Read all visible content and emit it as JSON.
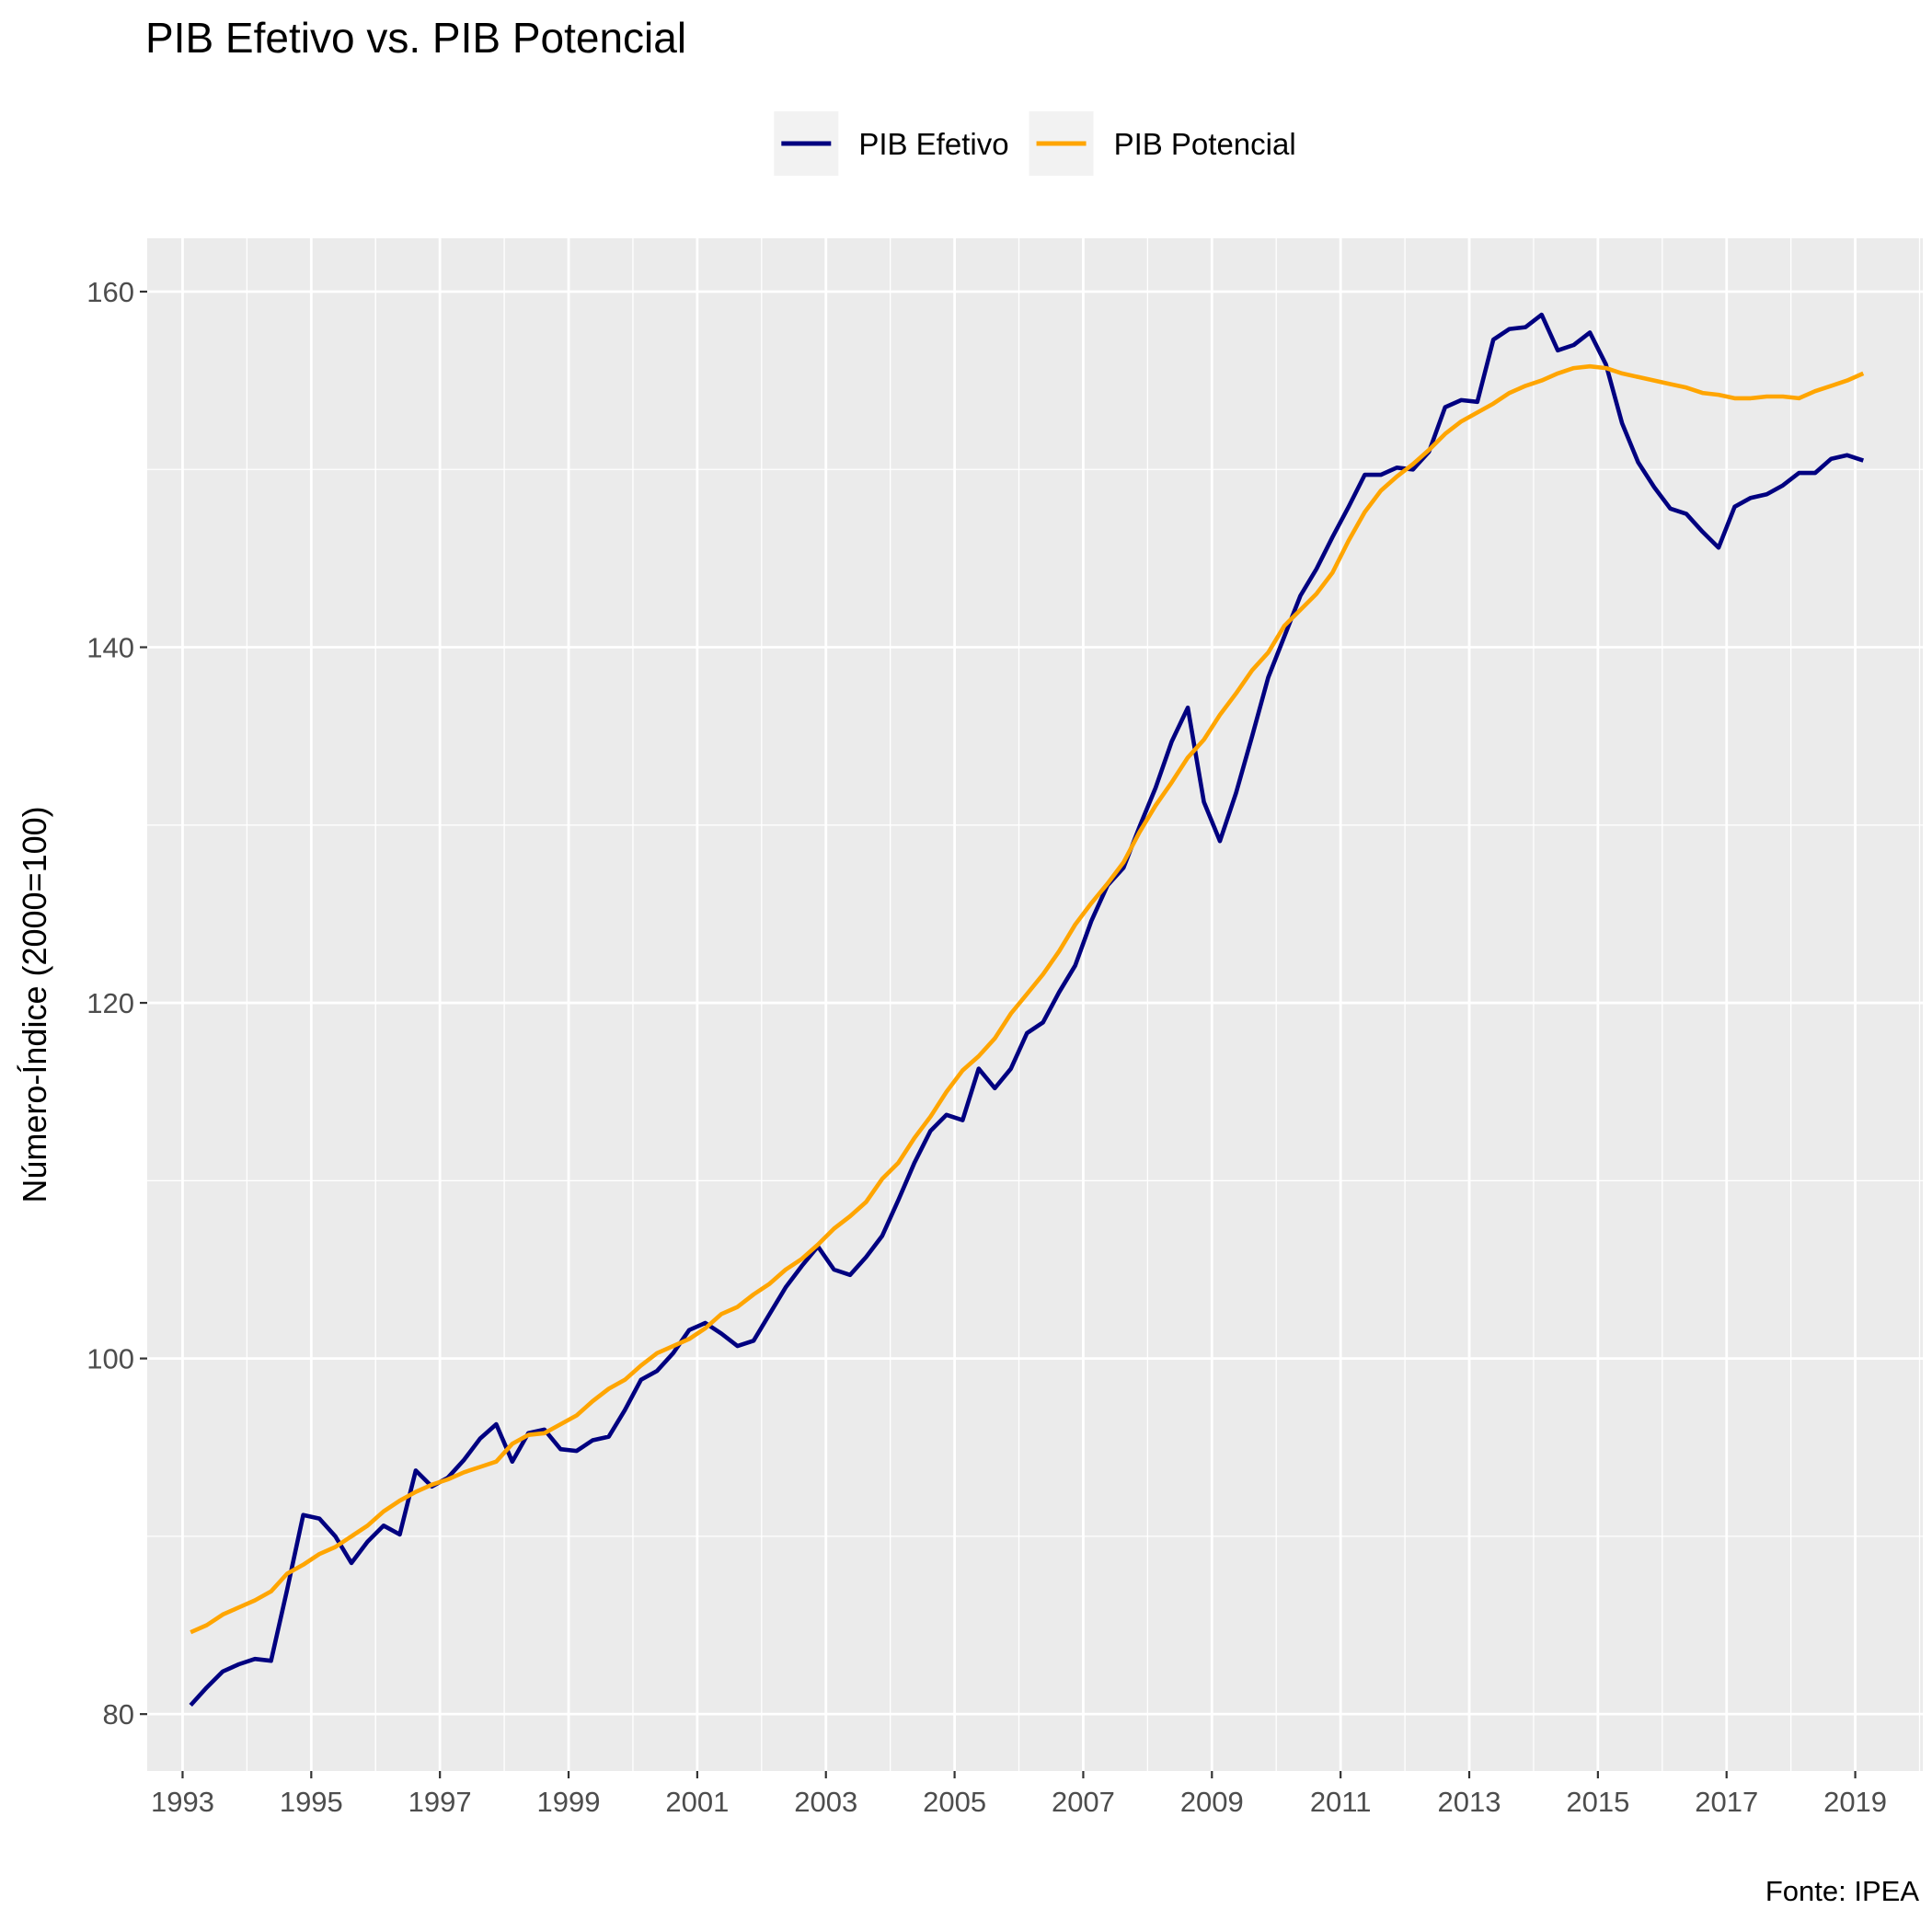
{
  "chart_data": {
    "type": "line",
    "title": "PIB Efetivo vs. PIB Potencial",
    "ylabel": "Número-Índice (2000=100)",
    "xlabel": "",
    "caption": "Fonte: IPEA",
    "legend_position": "top",
    "grid": true,
    "xlim": [
      1992.45,
      2020.05
    ],
    "ylim": [
      76.8,
      163.0
    ],
    "x_ticks": [
      1993,
      1995,
      1997,
      1999,
      2001,
      2003,
      2005,
      2007,
      2009,
      2011,
      2013,
      2015,
      2017,
      2019
    ],
    "y_ticks": [
      80,
      100,
      120,
      140,
      160
    ],
    "x_start": 1993.125,
    "x_step": 0.25,
    "series": [
      {
        "name": "PIB Efetivo",
        "color": "#000080",
        "values": [
          80.5,
          81.5,
          82.4,
          82.8,
          83.1,
          83.0,
          87.0,
          91.2,
          91.0,
          90.0,
          88.5,
          89.7,
          90.6,
          90.1,
          93.7,
          92.8,
          93.3,
          94.3,
          95.5,
          96.3,
          94.2,
          95.8,
          96.0,
          94.9,
          94.8,
          95.4,
          95.6,
          97.1,
          98.8,
          99.3,
          100.3,
          101.6,
          102.0,
          101.4,
          100.7,
          101.0,
          102.5,
          104.0,
          105.2,
          106.3,
          105.0,
          104.7,
          105.7,
          106.9,
          108.9,
          111.0,
          112.8,
          113.7,
          113.4,
          116.3,
          115.2,
          116.3,
          118.3,
          118.9,
          120.6,
          122.1,
          124.6,
          126.6,
          127.6,
          129.9,
          132.1,
          134.7,
          136.6,
          131.3,
          129.1,
          131.8,
          135.0,
          138.3,
          140.6,
          142.9,
          144.4,
          146.2,
          147.9,
          149.7,
          149.7,
          150.1,
          150.0,
          151.0,
          153.5,
          153.9,
          153.8,
          157.3,
          157.9,
          158.0,
          158.7,
          156.7,
          157.0,
          157.7,
          155.9,
          152.6,
          150.4,
          149.0,
          147.8,
          147.5,
          146.5,
          145.6,
          147.9,
          148.4,
          148.6,
          149.1,
          149.8,
          149.8,
          150.6,
          150.8,
          150.5
        ]
      },
      {
        "name": "PIB Potencial",
        "color": "#FFA500",
        "values": [
          84.6,
          85.0,
          85.6,
          86.0,
          86.4,
          86.9,
          87.9,
          88.4,
          89.0,
          89.4,
          90.0,
          90.6,
          91.4,
          92.0,
          92.5,
          92.9,
          93.2,
          93.6,
          93.9,
          94.2,
          95.2,
          95.7,
          95.8,
          96.3,
          96.8,
          97.6,
          98.3,
          98.8,
          99.6,
          100.3,
          100.7,
          101.1,
          101.7,
          102.5,
          102.9,
          103.6,
          104.2,
          105.0,
          105.6,
          106.4,
          107.3,
          108.0,
          108.8,
          110.1,
          111.0,
          112.4,
          113.6,
          115.0,
          116.2,
          117.0,
          118.0,
          119.4,
          120.5,
          121.6,
          122.9,
          124.4,
          125.6,
          126.7,
          127.9,
          129.6,
          131.1,
          132.4,
          133.8,
          134.8,
          136.2,
          137.4,
          138.7,
          139.7,
          141.2,
          142.1,
          143.0,
          144.2,
          146.0,
          147.6,
          148.8,
          149.6,
          150.3,
          151.1,
          152.0,
          152.7,
          153.2,
          153.7,
          154.3,
          154.7,
          155.0,
          155.4,
          155.7,
          155.8,
          155.7,
          155.4,
          155.2,
          155.0,
          154.8,
          154.6,
          154.3,
          154.2,
          154.0,
          154.0,
          154.1,
          154.1,
          154.0,
          154.4,
          154.7,
          155.0,
          155.4
        ]
      }
    ]
  }
}
